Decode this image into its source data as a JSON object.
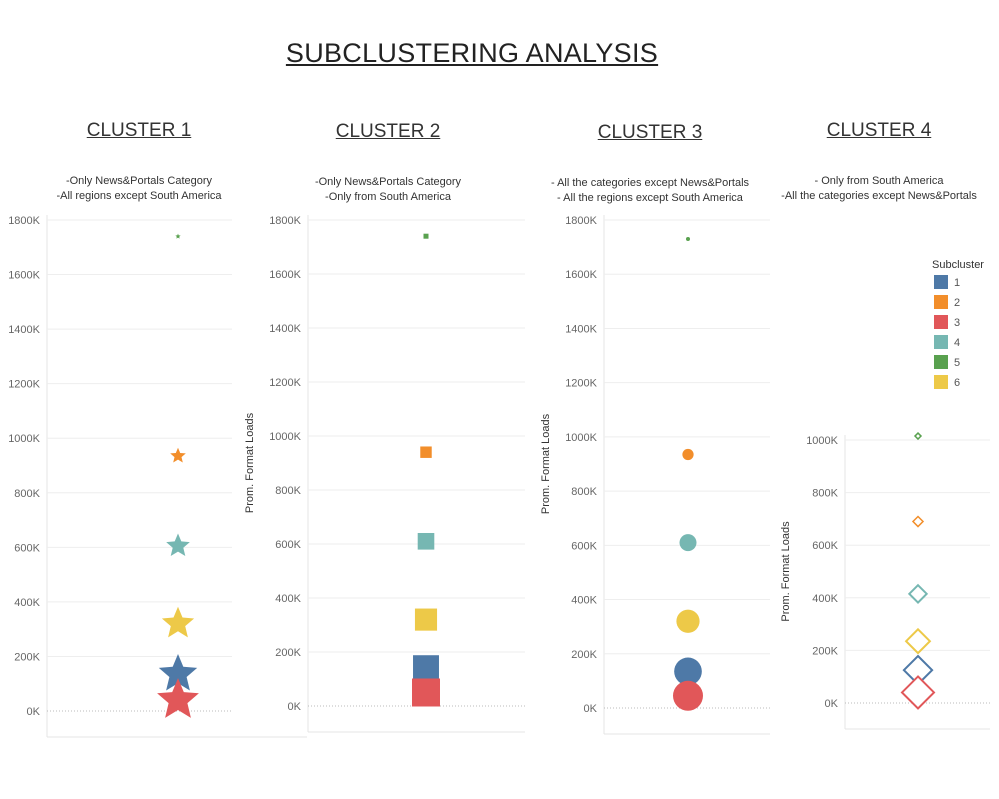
{
  "title": "SUBCLUSTERING ANALYSIS",
  "legend": {
    "title": "Subcluster",
    "items": [
      {
        "label": "1",
        "color": "#4e79a7"
      },
      {
        "label": "2",
        "color": "#f28e2b"
      },
      {
        "label": "3",
        "color": "#e15759"
      },
      {
        "label": "4",
        "color": "#76b7b2"
      },
      {
        "label": "5",
        "color": "#59a14f"
      },
      {
        "label": "6",
        "color": "#edc948"
      }
    ]
  },
  "chart_data": [
    {
      "type": "scatter",
      "title": "CLUSTER 1",
      "notes": [
        "-Only News&Portals Category",
        "-All regions except South America"
      ],
      "ylabel": "",
      "marker": "star",
      "ylim": [
        0,
        1800000
      ],
      "yticks": [
        "0K",
        "200K",
        "400K",
        "600K",
        "800K",
        "1000K",
        "1200K",
        "1400K",
        "1600K",
        "1800K"
      ],
      "grid": true,
      "series": [
        {
          "name": "1",
          "value": 135000
        },
        {
          "name": "2",
          "value": 935000
        },
        {
          "name": "3",
          "value": 40000
        },
        {
          "name": "4",
          "value": 605000
        },
        {
          "name": "5",
          "value": 1740000
        },
        {
          "name": "6",
          "value": 320000
        }
      ]
    },
    {
      "type": "scatter",
      "title": "CLUSTER 2",
      "notes": [
        "-Only News&Portals Category",
        "-Only from South America"
      ],
      "ylabel": "Prom. Format Loads",
      "marker": "square",
      "ylim": [
        0,
        1800000
      ],
      "yticks": [
        "0K",
        "200K",
        "400K",
        "600K",
        "800K",
        "1000K",
        "1200K",
        "1400K",
        "1600K",
        "1800K"
      ],
      "grid": true,
      "series": [
        {
          "name": "1",
          "value": 140000
        },
        {
          "name": "2",
          "value": 940000
        },
        {
          "name": "3",
          "value": 50000
        },
        {
          "name": "4",
          "value": 610000
        },
        {
          "name": "5",
          "value": 1740000
        },
        {
          "name": "6",
          "value": 320000
        }
      ]
    },
    {
      "type": "scatter",
      "title": "CLUSTER 3",
      "notes": [
        "- All the categories except News&Portals",
        "- All the regions except  South America"
      ],
      "ylabel": "Prom. Format Loads",
      "marker": "circle",
      "ylim": [
        0,
        1800000
      ],
      "yticks": [
        "0K",
        "200K",
        "400K",
        "600K",
        "800K",
        "1000K",
        "1200K",
        "1400K",
        "1600K",
        "1800K"
      ],
      "grid": true,
      "series": [
        {
          "name": "1",
          "value": 135000
        },
        {
          "name": "2",
          "value": 935000
        },
        {
          "name": "3",
          "value": 45000
        },
        {
          "name": "4",
          "value": 610000
        },
        {
          "name": "5",
          "value": 1730000
        },
        {
          "name": "6",
          "value": 320000
        }
      ]
    },
    {
      "type": "scatter",
      "title": "CLUSTER 4",
      "notes": [
        "- Only from South America",
        "-All the categories except News&Portals"
      ],
      "ylabel": "Prom. Format Loads",
      "marker": "diamond",
      "ylim": [
        0,
        1000000
      ],
      "yticks": [
        "0K",
        "200K",
        "400K",
        "600K",
        "800K",
        "1000K"
      ],
      "grid": true,
      "series": [
        {
          "name": "1",
          "value": 125000
        },
        {
          "name": "2",
          "value": 690000
        },
        {
          "name": "3",
          "value": 40000
        },
        {
          "name": "4",
          "value": 415000
        },
        {
          "name": "5",
          "value": 1015000
        },
        {
          "name": "6",
          "value": 235000
        }
      ]
    }
  ]
}
